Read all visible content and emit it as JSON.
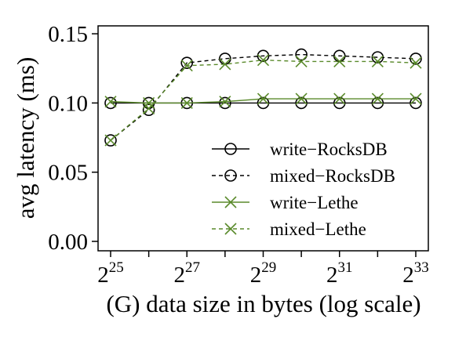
{
  "chart_data": {
    "type": "line",
    "xlabel": "(G) data size in bytes (log scale)",
    "ylabel": "avg latency (ms)",
    "x_scale": "log2",
    "x": [
      25,
      26,
      27,
      28,
      29,
      30,
      31,
      32,
      33
    ],
    "x_tick_exponents": [
      25,
      27,
      29,
      31,
      33
    ],
    "x_tick_base": "2",
    "ylim": [
      0.0,
      0.155
    ],
    "y_ticks": [
      "0.00",
      "0.05",
      "0.10",
      "0.15"
    ],
    "y_tick_values": [
      0.0,
      0.05,
      0.1,
      0.15
    ],
    "grid": false,
    "legend_position": "lower-right",
    "series": [
      {
        "name": "write−RocksDB",
        "values": [
          0.1,
          0.1,
          0.1,
          0.1,
          0.1,
          0.1,
          0.1,
          0.1,
          0.1
        ],
        "color": "#000000",
        "marker": "circle",
        "line": "solid"
      },
      {
        "name": "mixed−RocksDB",
        "values": [
          0.073,
          0.095,
          0.129,
          0.132,
          0.134,
          0.135,
          0.134,
          0.133,
          0.132
        ],
        "color": "#000000",
        "marker": "circle",
        "line": "dashed"
      },
      {
        "name": "write−Lethe",
        "values": [
          0.101,
          0.1,
          0.1,
          0.101,
          0.103,
          0.103,
          0.103,
          0.103,
          0.103
        ],
        "color": "#5a8a2b",
        "marker": "x",
        "line": "solid"
      },
      {
        "name": "mixed−Lethe",
        "values": [
          0.073,
          0.096,
          0.127,
          0.128,
          0.131,
          0.13,
          0.13,
          0.13,
          0.129
        ],
        "color": "#5a8a2b",
        "marker": "x",
        "line": "dashed"
      }
    ]
  }
}
